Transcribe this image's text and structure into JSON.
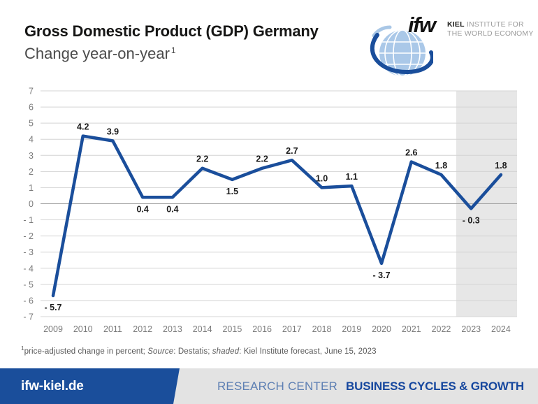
{
  "header": {
    "title": "Gross Domestic Product (GDP) Germany",
    "subtitle": "Change year-on-year",
    "footnote_marker": "1"
  },
  "logo": {
    "wordmark": "ifw",
    "institute_line1_bold": "KIEL",
    "institute_line1_light": " INSTITUTE FOR",
    "institute_line2": "THE WORLD ECONOMY"
  },
  "chart_data": {
    "type": "line",
    "title": "Gross Domestic Product (GDP) Germany — Change year-on-year, percent",
    "categories": [
      "2009",
      "2010",
      "2011",
      "2012",
      "2013",
      "2014",
      "2015",
      "2016",
      "2017",
      "2018",
      "2019",
      "2020",
      "2021",
      "2022",
      "2023",
      "2024"
    ],
    "values": [
      -5.7,
      4.2,
      3.9,
      0.4,
      0.4,
      2.2,
      1.5,
      2.2,
      2.7,
      1.0,
      1.1,
      -3.7,
      2.6,
      1.8,
      -0.3,
      1.8
    ],
    "point_labels": [
      "- 5.7",
      "4.2",
      "3.9",
      "0.4",
      "0.4",
      "2.2",
      "1.5",
      "2.2",
      "2.7",
      "1.0",
      "1.1",
      "- 3.7",
      "2.6",
      "1.8",
      "- 0.3",
      "1.8"
    ],
    "label_positions": [
      "below",
      "above",
      "above",
      "below",
      "below",
      "above",
      "below",
      "above",
      "above",
      "above",
      "above",
      "below",
      "above",
      "above",
      "below",
      "above"
    ],
    "ylim": [
      -7,
      7
    ],
    "ytick_labels": [
      "7",
      "6",
      "5",
      "4",
      "3",
      "2",
      "1",
      "0",
      "- 1",
      "- 2",
      "- 3",
      "- 4",
      "- 5",
      "- 6",
      "- 7"
    ],
    "grid": true,
    "legend": "none",
    "line_color": "#1a4e9b",
    "shaded": {
      "from": "2023",
      "to": "2024",
      "color": "#e7e7e7",
      "note": "Kiel Institute forecast"
    }
  },
  "footnote": {
    "marker": "1",
    "text1": "price-adjusted change in percent; ",
    "italic1": "Source",
    "text2": ": Destatis; ",
    "italic2": "shaded",
    "text3": ": Kiel Institute forecast, June 15, 2023"
  },
  "footer": {
    "site": "ifw-kiel.de",
    "research_center": "RESEARCH CENTER",
    "program": "BUSINESS CYCLES & GROWTH"
  },
  "colors": {
    "brand_blue": "#1a4e9b",
    "globe_light_blue": "#aac8e8",
    "footer_gray": "#e3e3e3"
  }
}
